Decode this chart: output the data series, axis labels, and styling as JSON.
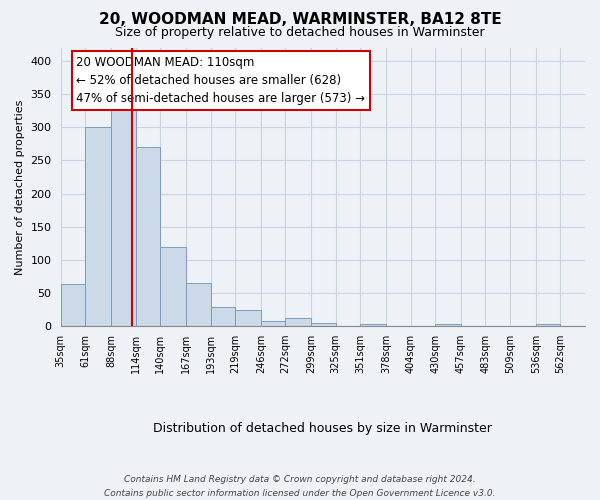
{
  "title": "20, WOODMAN MEAD, WARMINSTER, BA12 8TE",
  "subtitle": "Size of property relative to detached houses in Warminster",
  "xlabel": "Distribution of detached houses by size in Warminster",
  "ylabel": "Number of detached properties",
  "bar_color": "#ccd9e8",
  "bar_edge_color": "#7a9cbf",
  "property_line_x": 110,
  "property_line_color": "#cc0000",
  "annotation_text": "20 WOODMAN MEAD: 110sqm\n← 52% of detached houses are smaller (628)\n47% of semi-detached houses are larger (573) →",
  "annotation_box_color": "white",
  "annotation_box_edge": "#cc0000",
  "tick_labels": [
    "35sqm",
    "61sqm",
    "88sqm",
    "114sqm",
    "140sqm",
    "167sqm",
    "193sqm",
    "219sqm",
    "246sqm",
    "272sqm",
    "299sqm",
    "325sqm",
    "351sqm",
    "378sqm",
    "404sqm",
    "430sqm",
    "457sqm",
    "483sqm",
    "509sqm",
    "536sqm",
    "562sqm"
  ],
  "bin_edges": [
    35,
    61,
    88,
    114,
    140,
    167,
    193,
    219,
    246,
    272,
    299,
    325,
    351,
    378,
    404,
    430,
    457,
    483,
    509,
    536,
    562
  ],
  "bar_heights": [
    63,
    300,
    333,
    270,
    120,
    65,
    29,
    25,
    8,
    13,
    5,
    0,
    3,
    0,
    0,
    3,
    0,
    0,
    0,
    4
  ],
  "ylim": [
    0,
    420
  ],
  "yticks": [
    0,
    50,
    100,
    150,
    200,
    250,
    300,
    350,
    400
  ],
  "footer_text": "Contains HM Land Registry data © Crown copyright and database right 2024.\nContains public sector information licensed under the Open Government Licence v3.0.",
  "background_color": "#eef2f7",
  "grid_color": "#c8d4e0"
}
